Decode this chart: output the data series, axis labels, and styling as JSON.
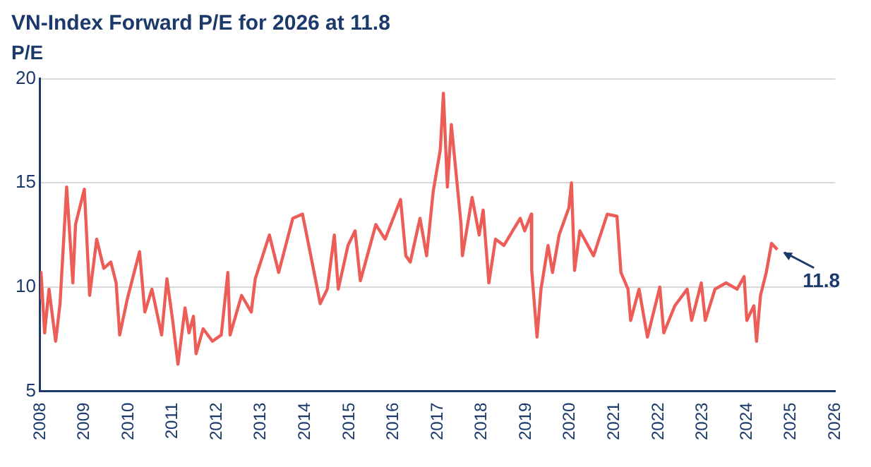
{
  "chart_data": {
    "type": "line",
    "title": "VN-Index Forward P/E for 2026 at 11.8",
    "ylabel": "P/E",
    "x": [
      2008.0,
      2008.02,
      2008.1,
      2008.2,
      2008.35,
      2008.45,
      2008.6,
      2008.74,
      2008.8,
      2009.0,
      2009.12,
      2009.28,
      2009.44,
      2009.6,
      2009.72,
      2009.8,
      2009.97,
      2010.25,
      2010.37,
      2010.53,
      2010.75,
      2010.87,
      2011.0,
      2011.12,
      2011.28,
      2011.37,
      2011.47,
      2011.53,
      2011.69,
      2011.9,
      2012.1,
      2012.25,
      2012.3,
      2012.56,
      2012.78,
      2012.87,
      2013.19,
      2013.4,
      2013.72,
      2013.94,
      2014.25,
      2014.34,
      2014.5,
      2014.66,
      2014.75,
      2014.97,
      2015.13,
      2015.25,
      2015.6,
      2015.81,
      2016.16,
      2016.28,
      2016.38,
      2016.6,
      2016.75,
      2016.9,
      2017.06,
      2017.13,
      2017.22,
      2017.31,
      2017.53,
      2017.56,
      2017.78,
      2017.94,
      2018.03,
      2018.16,
      2018.31,
      2018.5,
      2018.87,
      2018.97,
      2019.12,
      2019.13,
      2019.25,
      2019.34,
      2019.5,
      2019.6,
      2019.75,
      2019.97,
      2020.03,
      2020.1,
      2020.22,
      2020.53,
      2020.84,
      2021.06,
      2021.15,
      2021.31,
      2021.37,
      2021.56,
      2021.75,
      2022.03,
      2022.12,
      2022.37,
      2022.65,
      2022.75,
      2022.97,
      2023.06,
      2023.28,
      2023.53,
      2023.78,
      2023.94,
      2024.0,
      2024.16,
      2024.22,
      2024.31,
      2024.44,
      2024.56,
      2024.69
    ],
    "series": [
      {
        "color": "#ec5d57",
        "values": [
          9.4,
          10.7,
          7.8,
          9.9,
          7.4,
          9.2,
          14.8,
          10.2,
          13.0,
          14.7,
          9.6,
          12.3,
          10.9,
          11.2,
          10.2,
          7.7,
          9.4,
          11.7,
          8.8,
          9.9,
          7.7,
          10.4,
          8.4,
          6.3,
          9.0,
          7.8,
          8.6,
          6.8,
          8.0,
          7.4,
          7.7,
          10.7,
          7.7,
          9.6,
          8.8,
          10.4,
          12.5,
          10.7,
          13.3,
          13.5,
          10.2,
          9.2,
          9.9,
          12.5,
          9.9,
          12.0,
          12.7,
          10.3,
          13.0,
          12.3,
          14.2,
          11.5,
          11.2,
          13.3,
          11.5,
          14.6,
          16.6,
          19.3,
          14.8,
          17.8,
          13.0,
          11.5,
          14.3,
          12.5,
          13.7,
          10.2,
          12.3,
          12.0,
          13.3,
          12.7,
          13.5,
          10.8,
          7.6,
          9.9,
          12.0,
          10.7,
          12.5,
          13.8,
          15.0,
          10.8,
          12.7,
          11.5,
          13.5,
          13.4,
          10.7,
          9.9,
          8.4,
          9.9,
          7.6,
          10.0,
          7.8,
          9.1,
          9.9,
          8.4,
          10.2,
          8.4,
          9.9,
          10.2,
          9.9,
          10.5,
          8.4,
          9.1,
          7.4,
          9.6,
          10.7,
          12.1,
          11.8
        ]
      }
    ],
    "xlim": [
      2008,
      2026
    ],
    "xticks": [
      2008,
      2009,
      2010,
      2011,
      2012,
      2013,
      2014,
      2015,
      2016,
      2017,
      2018,
      2019,
      2020,
      2021,
      2022,
      2023,
      2024,
      2025,
      2026
    ],
    "ylim": [
      5,
      20
    ],
    "yticks": [
      5,
      10,
      15,
      20
    ],
    "grid": "y",
    "legend": false,
    "marker": "none",
    "line_style": "solid",
    "annotations": [
      {
        "text": "11.8",
        "x": 2024.69,
        "y": 11.8
      }
    ]
  }
}
